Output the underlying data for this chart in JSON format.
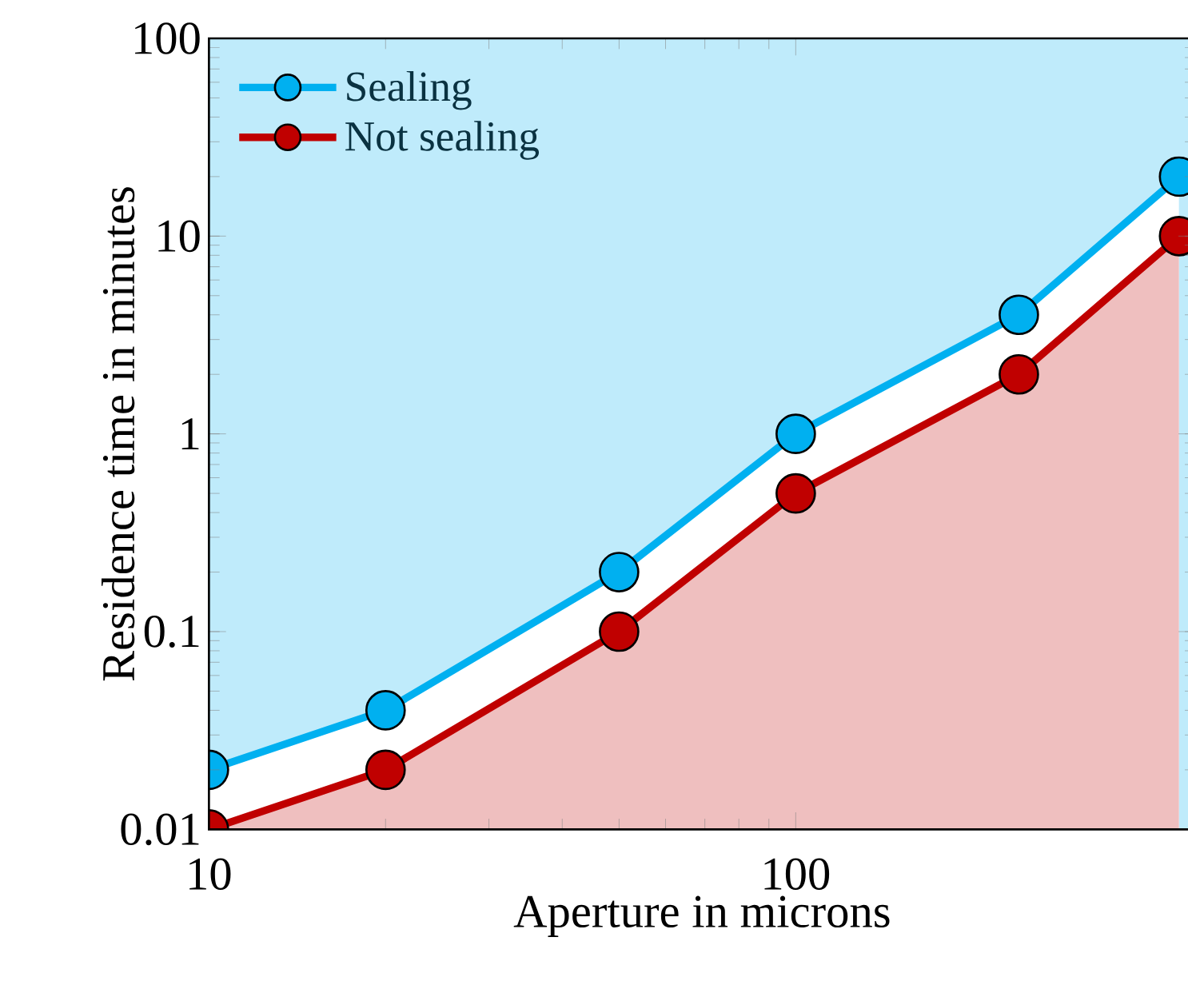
{
  "chart_data": {
    "type": "area",
    "xlabel": "Aperture in microns",
    "ylabel": "Residence time in minutes",
    "log": "xy",
    "xlim": [
      10,
      480
    ],
    "ylim": [
      0.01,
      100
    ],
    "xticks": [
      10,
      100
    ],
    "yticks": [
      0.01,
      0.1,
      1,
      10,
      100
    ],
    "legend": "top left",
    "marker": "circle",
    "line_style": "solid",
    "grid": false,
    "x": [
      10,
      20,
      50,
      100,
      240,
      450
    ],
    "series": [
      {
        "name": "Sealing",
        "color": "#00b0f0",
        "values": [
          0.02,
          0.04,
          0.2,
          1,
          4,
          20
        ]
      },
      {
        "name": "Not sealing",
        "color": "#c00000",
        "values": [
          0.01,
          0.02,
          0.1,
          0.5,
          2,
          10
        ]
      }
    ]
  }
}
